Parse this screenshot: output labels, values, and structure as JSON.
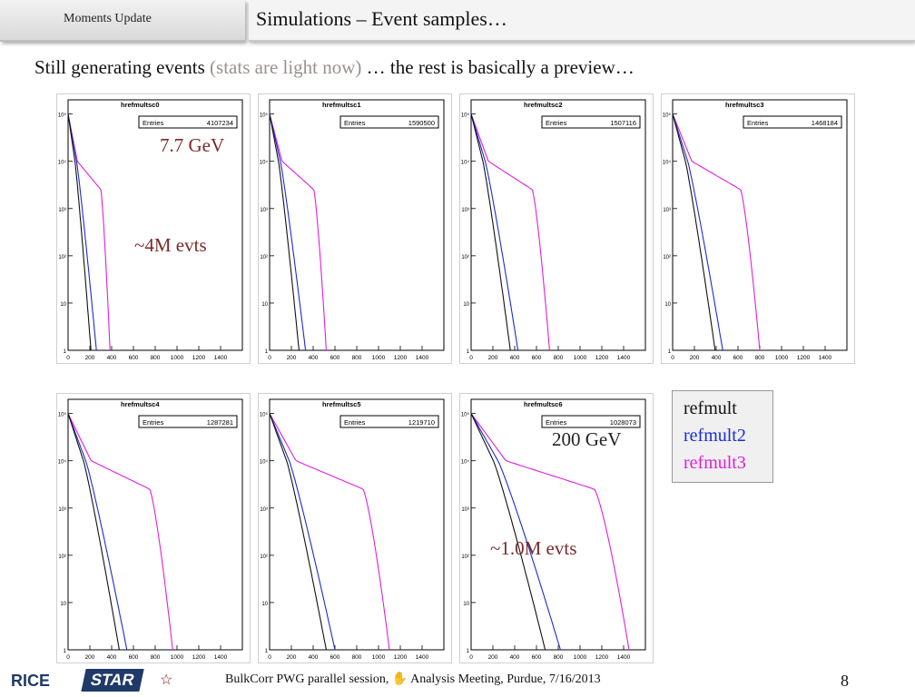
{
  "header": {
    "section_tab": "Moments Update",
    "title": "Simulations – Event samples…"
  },
  "subtitle": {
    "part1": "Still generating events ",
    "part2": "(stats are light now)",
    "part3": " … the rest is basically a preview…"
  },
  "plots": [
    {
      "name": "hrefmultsc0",
      "entries_label": "Entries",
      "entries": "4107234",
      "x_cut": [
        210,
        260,
        385
      ]
    },
    {
      "name": "hrefmultsc1",
      "entries_label": "Entries",
      "entries": "1590500",
      "x_cut": [
        270,
        330,
        520
      ]
    },
    {
      "name": "hrefmultsc2",
      "entries_label": "Entries",
      "entries": "1507116",
      "x_cut": [
        360,
        430,
        720
      ]
    },
    {
      "name": "hrefmultsc3",
      "entries_label": "Entries",
      "entries": "1468184",
      "x_cut": [
        390,
        460,
        800
      ]
    },
    {
      "name": "hrefmultsc4",
      "entries_label": "Entries",
      "entries": "1287281",
      "x_cut": [
        470,
        540,
        960
      ]
    },
    {
      "name": "hrefmultsc5",
      "entries_label": "Entries",
      "entries": "1219710",
      "x_cut": [
        520,
        600,
        1100
      ]
    },
    {
      "name": "hrefmultsc6",
      "entries_label": "Entries",
      "entries": "1028073",
      "x_cut": [
        680,
        820,
        1450
      ]
    }
  ],
  "axes": {
    "x_ticks": [
      "0",
      "200",
      "400",
      "600",
      "800",
      "1000",
      "1200",
      "1400"
    ],
    "y_ticks": [
      "1",
      "10",
      "10²",
      "10³",
      "10⁴",
      "10⁵"
    ]
  },
  "annotations": {
    "energy_low": "7.7 GeV",
    "events_low": "~4M evts",
    "energy_high": "200 GeV",
    "events_high": "~1.0M evts"
  },
  "legend": {
    "items": [
      {
        "label": "refmult",
        "color": "#111111"
      },
      {
        "label": "refmult2",
        "color": "#1b2bd6"
      },
      {
        "label": "refmult3",
        "color": "#e01ee0"
      }
    ]
  },
  "footer": {
    "text": "BulkCorr PWG parallel session,  ✋  Analysis Meeting,  Purdue,  7/16/2013",
    "page": "8",
    "logo_rice": "RICE",
    "logo_star": "STAR"
  },
  "colors": {
    "refmult": "#111111",
    "refmult2": "#1b2bd6",
    "refmult3": "#e01ee0"
  }
}
